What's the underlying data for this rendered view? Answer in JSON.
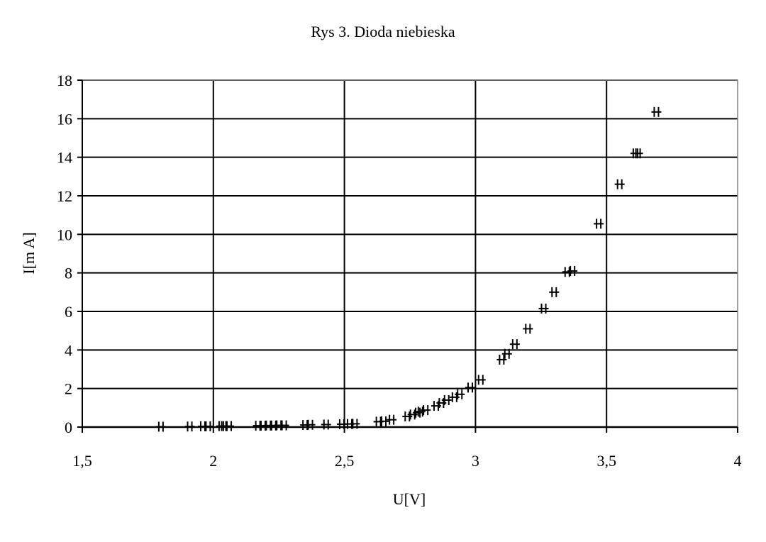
{
  "chart_data": {
    "type": "scatter",
    "title": "Rys 3. Dioda niebieska",
    "xlabel": "U[V]",
    "ylabel": "I[m A]",
    "xlim": [
      1.5,
      4
    ],
    "ylim": [
      0,
      18
    ],
    "x_ticks": [
      1.5,
      2,
      2.5,
      3,
      3.5,
      4
    ],
    "x_tick_labels": [
      "1,5",
      "2",
      "2,5",
      "3",
      "3,5",
      "4"
    ],
    "y_ticks": [
      0,
      2,
      4,
      6,
      8,
      10,
      12,
      14,
      16,
      18
    ],
    "y_tick_labels": [
      "0",
      "2",
      "4",
      "6",
      "8",
      "10",
      "12",
      "14",
      "16",
      "18"
    ],
    "grid": "horizontal and vertical major gridlines",
    "marker": "double-cross",
    "colors": {
      "marks": "#000000",
      "grid": "#000000",
      "plot_border": "#808080"
    },
    "series": [
      {
        "points": [
          [
            1.8,
            0.02
          ],
          [
            1.91,
            0.03
          ],
          [
            1.96,
            0.04
          ],
          [
            1.98,
            0.04
          ],
          [
            2.03,
            0.05
          ],
          [
            2.04,
            0.05
          ],
          [
            2.06,
            0.05
          ],
          [
            2.17,
            0.07
          ],
          [
            2.19,
            0.07
          ],
          [
            2.21,
            0.08
          ],
          [
            2.23,
            0.08
          ],
          [
            2.25,
            0.09
          ],
          [
            2.27,
            0.09
          ],
          [
            2.35,
            0.11
          ],
          [
            2.37,
            0.12
          ],
          [
            2.43,
            0.13
          ],
          [
            2.49,
            0.15
          ],
          [
            2.52,
            0.16
          ],
          [
            2.54,
            0.17
          ],
          [
            2.63,
            0.28
          ],
          [
            2.65,
            0.3
          ],
          [
            2.68,
            0.38
          ],
          [
            2.74,
            0.55
          ],
          [
            2.76,
            0.65
          ],
          [
            2.78,
            0.75
          ],
          [
            2.79,
            0.8
          ],
          [
            2.81,
            0.88
          ],
          [
            2.85,
            1.1
          ],
          [
            2.87,
            1.25
          ],
          [
            2.89,
            1.4
          ],
          [
            2.92,
            1.55
          ],
          [
            2.94,
            1.7
          ],
          [
            2.98,
            2.05
          ],
          [
            3.02,
            2.45
          ],
          [
            3.1,
            3.5
          ],
          [
            3.12,
            3.8
          ],
          [
            3.15,
            4.3
          ],
          [
            3.2,
            5.1
          ],
          [
            3.26,
            6.15
          ],
          [
            3.3,
            7.0
          ],
          [
            3.35,
            8.05
          ],
          [
            3.37,
            8.1
          ],
          [
            3.47,
            10.55
          ],
          [
            3.55,
            12.6
          ],
          [
            3.61,
            14.2
          ],
          [
            3.62,
            14.2
          ],
          [
            3.69,
            16.35
          ]
        ]
      }
    ]
  }
}
